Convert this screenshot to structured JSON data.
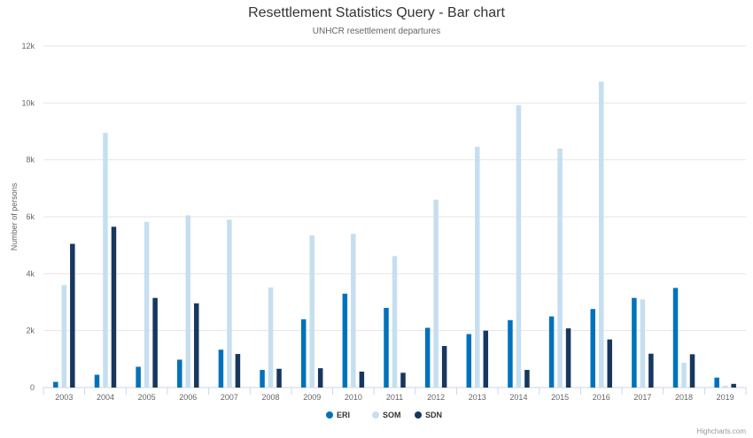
{
  "header": {
    "title": "Resettlement Statistics Query - Bar chart",
    "subtitle": "UNHCR resettlement departures"
  },
  "credit": "Highcharts.com",
  "colors": {
    "ERI": "#0072bc",
    "SOM": "#c5dff0",
    "SDN": "#18375f",
    "grid": "#e6e6e6",
    "axis": "#ccd6eb",
    "text": "#666666"
  },
  "chart_data": {
    "type": "bar",
    "title": "Resettlement Statistics Query - Bar chart",
    "subtitle": "UNHCR resettlement departures",
    "xlabel": "",
    "ylabel": "Number of persons",
    "ylim": [
      0,
      12000
    ],
    "yticks": [
      0,
      2000,
      4000,
      6000,
      8000,
      10000,
      12000
    ],
    "ytick_labels": [
      "0",
      "2k",
      "4k",
      "6k",
      "8k",
      "10k",
      "12k"
    ],
    "grid": true,
    "legend": "bottom-center",
    "categories": [
      "2003",
      "2004",
      "2005",
      "2006",
      "2007",
      "2008",
      "2009",
      "2010",
      "2011",
      "2012",
      "2013",
      "2014",
      "2015",
      "2016",
      "2017",
      "2018",
      "2019"
    ],
    "series": [
      {
        "name": "ERI",
        "color": "#0072bc",
        "values": [
          200,
          450,
          730,
          980,
          1330,
          620,
          2400,
          3300,
          2800,
          2100,
          1880,
          2370,
          2500,
          2760,
          3150,
          3500,
          350
        ]
      },
      {
        "name": "SOM",
        "color": "#c5dff0",
        "values": [
          3600,
          8950,
          5820,
          6050,
          5900,
          3520,
          5350,
          5400,
          4620,
          6600,
          8460,
          9920,
          8400,
          10750,
          3100,
          870,
          60
        ]
      },
      {
        "name": "SDN",
        "color": "#18375f",
        "values": [
          5050,
          5650,
          3150,
          2960,
          1180,
          660,
          680,
          560,
          520,
          1460,
          2000,
          620,
          2080,
          1690,
          1190,
          1170,
          130
        ]
      }
    ]
  }
}
